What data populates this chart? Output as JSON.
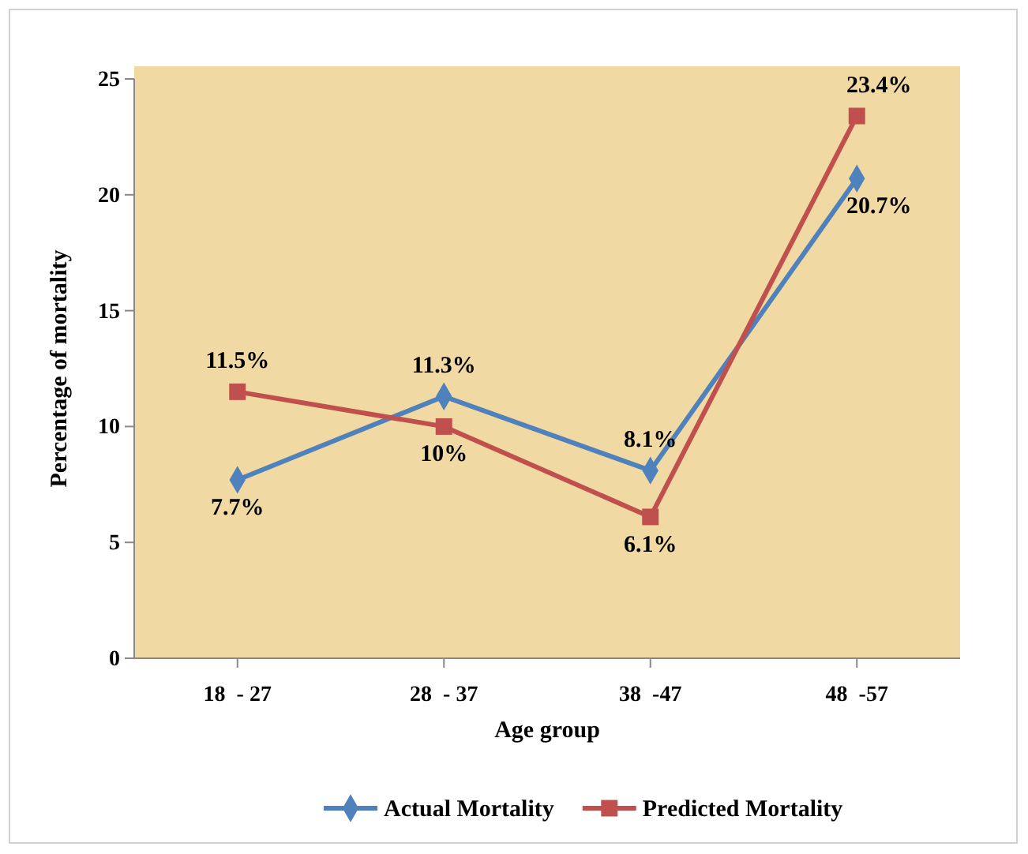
{
  "chart_data": {
    "type": "line",
    "xlabel": "Age group",
    "ylabel": "Percentage of mortality",
    "categories": [
      "18  - 27",
      "28  - 37",
      "38  -47",
      "48  -57"
    ],
    "ylim": [
      0,
      25
    ],
    "yticks": [
      0,
      5,
      10,
      15,
      20,
      25
    ],
    "grid": false,
    "legend": "bottom",
    "series": [
      {
        "name": "Actual Mortality",
        "color": "#4f81bd",
        "marker": "diamond",
        "values": [
          7.7,
          11.3,
          8.1,
          20.7
        ],
        "value_labels": [
          "7.7%",
          "11.3%",
          "8.1%",
          "20.7%"
        ]
      },
      {
        "name": "Predicted Mortality",
        "color": "#c0504d",
        "marker": "square",
        "values": [
          11.5,
          10,
          6.1,
          23.4
        ],
        "value_labels": [
          "11.5%",
          "10%",
          "6.1%",
          "23.4%"
        ]
      }
    ]
  }
}
